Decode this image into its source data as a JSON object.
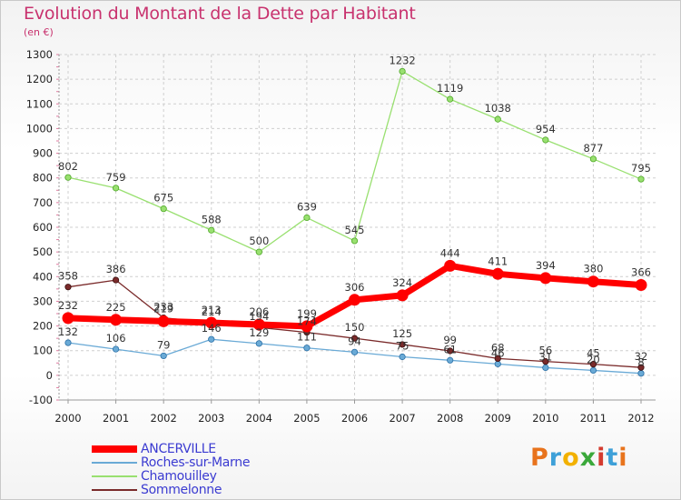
{
  "header": {
    "title": "Evolution du Montant de la Dette par Habitant",
    "unit": "(en €)"
  },
  "logo": {
    "text": "Proxiti",
    "colors": [
      "#e8731c",
      "#3ea0d8",
      "#f2b100",
      "#3aa83a",
      "#d43b2f",
      "#3ea0d8",
      "#e8731c"
    ]
  },
  "chart_data": {
    "type": "line",
    "title": "Evolution du Montant de la Dette par Habitant",
    "ylabel": "(en €)",
    "x": [
      "2000",
      "2001",
      "2002",
      "2003",
      "2004",
      "2005",
      "2006",
      "2007",
      "2008",
      "2009",
      "2010",
      "2011",
      "2012"
    ],
    "ylim": [
      -100,
      1300
    ],
    "yticks": [
      -100,
      0,
      100,
      200,
      300,
      400,
      500,
      600,
      700,
      800,
      900,
      1000,
      1100,
      1200,
      1300
    ],
    "grid": "horizontal dashed",
    "legend_position": "bottom-left",
    "series": [
      {
        "name": "ANCERVILLE",
        "color": "#ff0000",
        "values": [
          232,
          225,
          219,
          213,
          206,
          199,
          306,
          324,
          444,
          411,
          394,
          380,
          366
        ],
        "labels": [
          "232",
          "225",
          "219",
          "213",
          "206",
          "199",
          "306",
          "324",
          "444",
          "411",
          "394",
          "380",
          "366"
        ]
      },
      {
        "name": "Roches-sur-Marne",
        "color": "#6aaad6",
        "values": [
          132,
          106,
          79,
          146,
          129,
          111,
          94,
          75,
          61,
          46,
          31,
          20,
          8
        ],
        "labels": [
          "132",
          "106",
          "79",
          "146",
          "129",
          "111",
          "94",
          "75",
          "61",
          "46",
          "31",
          "20",
          "8"
        ]
      },
      {
        "name": "Chamouilley",
        "color": "#99e070",
        "values": [
          802,
          759,
          675,
          588,
          500,
          639,
          545,
          1232,
          1119,
          1038,
          954,
          877,
          795
        ],
        "labels": [
          "802",
          "759",
          "675",
          "588",
          "500",
          "639",
          "545",
          "1232",
          "1119",
          "1038",
          "954",
          "877",
          "795"
        ]
      },
      {
        "name": "Sommelonne",
        "color": "#7a2a2a",
        "values": [
          358,
          386,
          233,
          214,
          194,
          174,
          150,
          125,
          99,
          68,
          56,
          45,
          32
        ],
        "labels": [
          "358",
          "386",
          "233",
          "214",
          "194",
          "174",
          "150",
          "125",
          "99",
          "68",
          "56",
          "45",
          "32"
        ]
      }
    ]
  }
}
